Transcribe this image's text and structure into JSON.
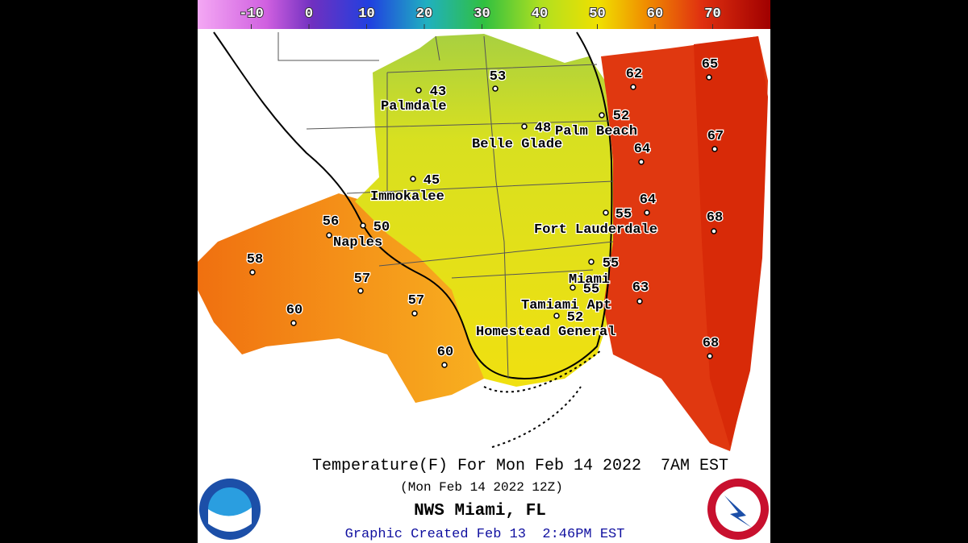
{
  "colorbar": {
    "range": [
      -19.3,
      80
    ],
    "ticks": [
      -10,
      0,
      10,
      20,
      30,
      40,
      50,
      60,
      70
    ]
  },
  "stations": [
    43,
    53,
    62,
    65,
    52,
    48,
    67,
    64,
    45,
    64,
    55,
    68,
    56,
    50,
    58,
    55,
    57,
    55,
    63,
    57,
    52,
    60,
    60,
    68
  ],
  "places": [
    "Palmdale",
    "Belle Glade",
    "Palm Beach",
    "Immokalee",
    "Naples",
    "Fort Lauderdale",
    "Miami",
    "Tamiami Apt",
    "Homestead General"
  ],
  "footer": {
    "title": "Temperature(F) For Mon Feb 14 2022  7AM EST",
    "subtitle": "(Mon Feb 14 2022 12Z)",
    "office": "NWS Miami, FL",
    "created": "Graphic Created Feb 13  2:46PM EST"
  }
}
